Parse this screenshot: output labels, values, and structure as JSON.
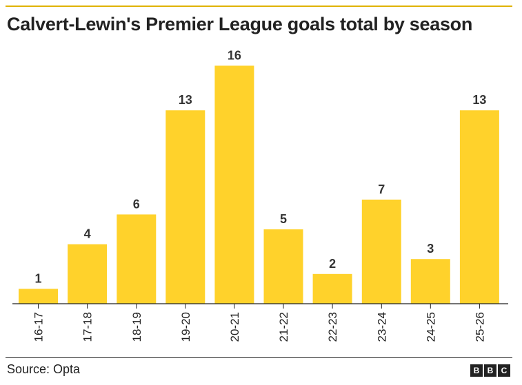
{
  "header": {
    "title": "Calvert-Lewin's Premier League goals total by season"
  },
  "footer": {
    "source": "Source: Opta",
    "logo_letters": [
      "B",
      "B",
      "C"
    ]
  },
  "colors": {
    "bar": "#ffd22b",
    "rule_top": "#e0b200",
    "text": "#222222"
  },
  "chart_data": {
    "type": "bar",
    "title": "Calvert-Lewin's Premier League goals total by season",
    "xlabel": "",
    "ylabel": "",
    "categories": [
      "16-17",
      "17-18",
      "18-19",
      "19-20",
      "20-21",
      "21-22",
      "22-23",
      "23-24",
      "24-25",
      "25-26"
    ],
    "values": [
      1,
      4,
      6,
      13,
      16,
      5,
      2,
      7,
      3,
      13
    ],
    "ylim": [
      0,
      16
    ],
    "grid": false,
    "legend": "none",
    "data_labels": true
  }
}
